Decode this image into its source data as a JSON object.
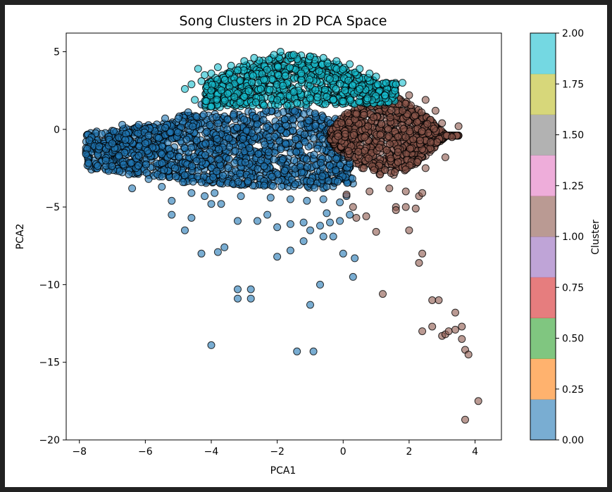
{
  "chart_data": {
    "type": "scatter",
    "title": "Song Clusters in 2D PCA Space",
    "xlabel": "PCA1",
    "ylabel": "PCA2",
    "xlim": [
      -8.4,
      4.8
    ],
    "ylim": [
      -20,
      6.2
    ],
    "xticks": [
      -8,
      -6,
      -4,
      -2,
      0,
      2,
      4
    ],
    "xtick_labels": [
      "−8",
      "−6",
      "−4",
      "−2",
      "0",
      "2",
      "4"
    ],
    "yticks": [
      -20,
      -15,
      -10,
      -5,
      0,
      5
    ],
    "ytick_labels": [
      "−20",
      "−15",
      "−10",
      "−5",
      "0",
      "5"
    ],
    "grid": false,
    "legend": "none",
    "marker": {
      "alpha": 0.6,
      "edgecolor": "#000000"
    },
    "colorbar": {
      "label": "Cluster",
      "range": [
        0,
        2
      ],
      "ticks": [
        0.0,
        0.25,
        0.5,
        0.75,
        1.0,
        1.25,
        1.5,
        1.75,
        2.0
      ],
      "tick_labels": [
        "0.00",
        "0.25",
        "0.50",
        "0.75",
        "1.00",
        "1.25",
        "1.50",
        "1.75",
        "2.00"
      ],
      "colors": [
        "#1f77b4",
        "#ff7f0e",
        "#2ca02c",
        "#d62728",
        "#9467bd",
        "#8c564b",
        "#e377c2",
        "#7f7f7f",
        "#bcbd22",
        "#17becf"
      ]
    },
    "series": [
      {
        "cluster": 0,
        "color": "#1f77b4",
        "dense_region": {
          "x_range": [
            -7.8,
            0.3
          ],
          "center": [
            -3.0,
            -1.8
          ]
        },
        "points": [
          [
            -6.4,
            -3.8
          ],
          [
            -5.2,
            -4.6
          ],
          [
            -5.2,
            -5.5
          ],
          [
            -4.8,
            -6.5
          ],
          [
            -4.6,
            -5.7
          ],
          [
            -4.2,
            -4.3
          ],
          [
            -4.0,
            -4.8
          ],
          [
            -3.7,
            -4.8
          ],
          [
            -3.6,
            -7.6
          ],
          [
            -3.8,
            -7.9
          ],
          [
            -4.3,
            -8.0
          ],
          [
            -3.2,
            -5.9
          ],
          [
            -2.6,
            -5.9
          ],
          [
            -2.3,
            -5.5
          ],
          [
            -2.0,
            -6.3
          ],
          [
            -1.6,
            -6.1
          ],
          [
            -1.2,
            -6.0
          ],
          [
            -1.2,
            -7.2
          ],
          [
            -1.0,
            -6.5
          ],
          [
            -0.7,
            -6.2
          ],
          [
            -0.6,
            -6.9
          ],
          [
            -0.4,
            -6.0
          ],
          [
            -0.3,
            -6.9
          ],
          [
            -0.5,
            -5.4
          ],
          [
            -0.1,
            -5.9
          ],
          [
            0.2,
            -5.5
          ],
          [
            0.0,
            -8.0
          ],
          [
            0.35,
            -8.3
          ],
          [
            -1.6,
            -7.8
          ],
          [
            -2.0,
            -8.2
          ],
          [
            -3.2,
            -10.3
          ],
          [
            -3.2,
            -10.9
          ],
          [
            -2.8,
            -10.3
          ],
          [
            -2.8,
            -10.9
          ],
          [
            -1.0,
            -11.3
          ],
          [
            -0.7,
            -10.0
          ],
          [
            0.3,
            -9.5
          ],
          [
            -4.0,
            -13.9
          ],
          [
            -1.4,
            -14.3
          ],
          [
            -0.9,
            -14.3
          ],
          [
            -7.8,
            -1.6
          ],
          [
            -7.7,
            -0.7
          ],
          [
            -7.4,
            -1.1
          ],
          [
            -7.0,
            -0.9
          ],
          [
            -6.7,
            0.3
          ],
          [
            -6.2,
            0.3
          ],
          [
            -5.9,
            -0.4
          ],
          [
            -5.4,
            0.7
          ],
          [
            -5.0,
            0.7
          ],
          [
            -4.7,
            1.1
          ],
          [
            -4.3,
            1.6
          ],
          [
            -3.9,
            2.0
          ],
          [
            -3.5,
            1.7
          ],
          [
            -6.8,
            -1.7
          ],
          [
            -6.5,
            -2.9
          ],
          [
            -5.9,
            -3.2
          ],
          [
            -5.5,
            -3.7
          ],
          [
            -4.6,
            -4.1
          ],
          [
            -3.9,
            -4.1
          ],
          [
            -3.1,
            -4.3
          ],
          [
            -2.2,
            -4.4
          ],
          [
            -1.6,
            -4.5
          ],
          [
            -1.1,
            -4.6
          ],
          [
            -0.6,
            -4.5
          ],
          [
            -0.1,
            -4.7
          ],
          [
            0.1,
            -4.3
          ],
          [
            -7.2,
            -2.0
          ],
          [
            -6.0,
            -0.9
          ]
        ]
      },
      {
        "cluster": 1,
        "color": "#8c564b",
        "dense_region": {
          "x_range": [
            -0.5,
            3.7
          ],
          "center": [
            1.8,
            -0.3
          ]
        },
        "points": [
          [
            0.3,
            -5.0
          ],
          [
            0.4,
            -5.7
          ],
          [
            0.7,
            -5.6
          ],
          [
            1.0,
            -6.6
          ],
          [
            1.2,
            -10.6
          ],
          [
            1.6,
            -5.0
          ],
          [
            1.6,
            -5.2
          ],
          [
            1.9,
            -5.0
          ],
          [
            2.0,
            -6.5
          ],
          [
            2.2,
            -5.1
          ],
          [
            2.3,
            -8.6
          ],
          [
            2.4,
            -8.0
          ],
          [
            2.3,
            -4.3
          ],
          [
            2.4,
            -4.1
          ],
          [
            1.9,
            -4.0
          ],
          [
            2.7,
            -11.0
          ],
          [
            2.9,
            -11.0
          ],
          [
            3.4,
            -11.8
          ],
          [
            2.4,
            -13.0
          ],
          [
            2.7,
            -12.7
          ],
          [
            3.0,
            -13.3
          ],
          [
            3.1,
            -13.2
          ],
          [
            3.2,
            -13.0
          ],
          [
            3.4,
            -12.9
          ],
          [
            3.6,
            -12.7
          ],
          [
            3.6,
            -13.5
          ],
          [
            3.7,
            -14.2
          ],
          [
            3.8,
            -14.5
          ],
          [
            3.7,
            -18.7
          ],
          [
            4.1,
            -17.5
          ],
          [
            2.8,
            1.2
          ],
          [
            3.0,
            0.4
          ],
          [
            3.3,
            -0.5
          ],
          [
            3.5,
            0.2
          ],
          [
            2.5,
            -2.5
          ],
          [
            3.1,
            -1.8
          ],
          [
            0.1,
            -4.2
          ],
          [
            0.8,
            -4.0
          ],
          [
            1.4,
            -3.8
          ],
          [
            0.4,
            1.0
          ],
          [
            1.2,
            2.3
          ],
          [
            2.0,
            2.2
          ],
          [
            2.5,
            1.9
          ]
        ]
      },
      {
        "cluster": 2,
        "color": "#17becf",
        "dense_region": {
          "x_range": [
            -4.5,
            1.8
          ],
          "center": [
            -1.6,
            3.3
          ]
        },
        "points": [
          [
            -4.8,
            2.6
          ],
          [
            -4.6,
            2.9
          ],
          [
            -4.3,
            3.1
          ],
          [
            -4.2,
            3.5
          ],
          [
            -4.0,
            3.6
          ],
          [
            -3.8,
            4.0
          ],
          [
            -3.4,
            4.1
          ],
          [
            -3.0,
            4.4
          ],
          [
            -2.7,
            4.6
          ],
          [
            -2.1,
            4.8
          ],
          [
            -1.9,
            5.0
          ],
          [
            -1.5,
            4.8
          ],
          [
            -1.0,
            4.7
          ],
          [
            -0.6,
            4.6
          ],
          [
            -0.2,
            4.4
          ],
          [
            0.2,
            4.2
          ],
          [
            0.5,
            3.9
          ],
          [
            0.8,
            3.6
          ],
          [
            1.0,
            3.4
          ],
          [
            1.3,
            3.0
          ],
          [
            1.6,
            2.9
          ],
          [
            1.8,
            3.0
          ],
          [
            -4.5,
            1.9
          ],
          [
            -4.0,
            2.5
          ],
          [
            -3.5,
            2.3
          ],
          [
            -3.0,
            2.1
          ],
          [
            -2.5,
            2.6
          ],
          [
            -2.0,
            1.9
          ],
          [
            -1.5,
            2.4
          ],
          [
            -1.0,
            2.0
          ],
          [
            -0.5,
            2.1
          ],
          [
            0.0,
            1.8
          ],
          [
            0.5,
            2.6
          ],
          [
            -4.4,
            3.9
          ],
          [
            -3.2,
            3.8
          ],
          [
            -2.4,
            3.2
          ]
        ]
      }
    ]
  }
}
